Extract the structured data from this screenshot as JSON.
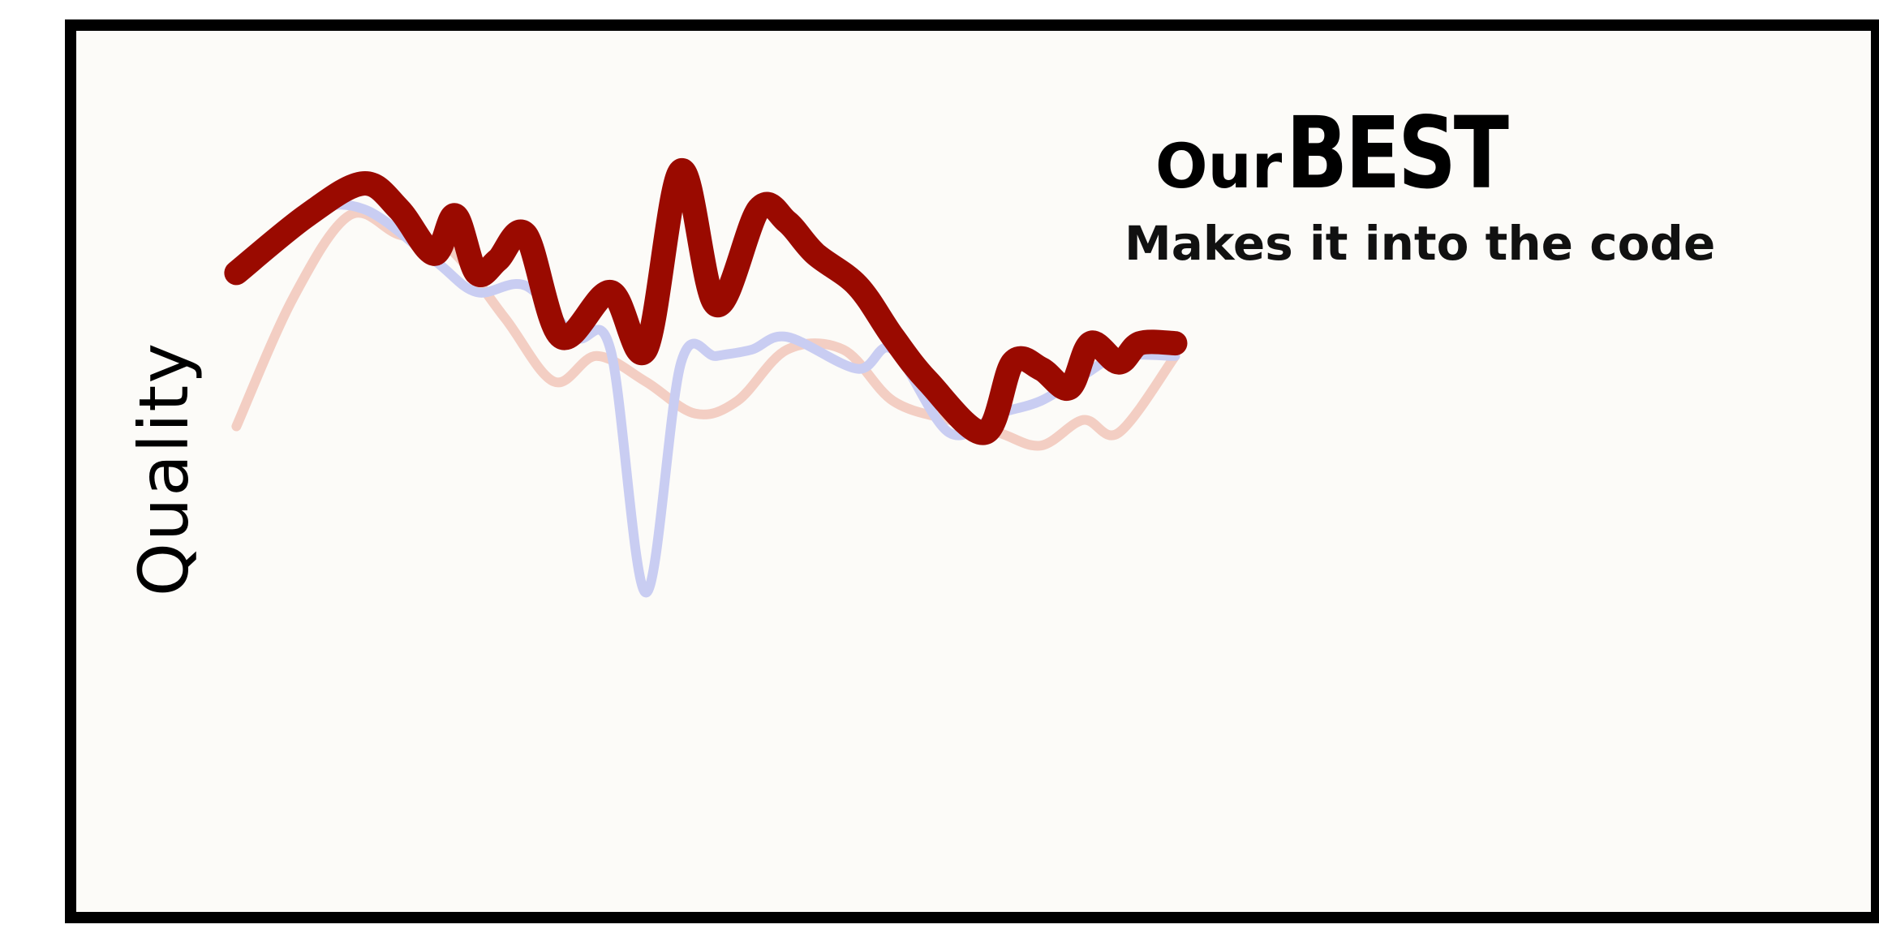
{
  "chart_data": {
    "type": "line",
    "title_prefix": "Our",
    "title_emphasis": "BEST",
    "subtitle": "Makes it into the code",
    "xlabel": "",
    "ylabel": "Quality",
    "ylim": [
      0,
      10
    ],
    "xlim": [
      0,
      22
    ],
    "grid": false,
    "legend": "none",
    "series": [
      {
        "color": "#9a0a00",
        "x": [
          0.2,
          1.2,
          2.0,
          2.5,
          3.0,
          3.3,
          3.6,
          3.9,
          4.3,
          4.8,
          5.5,
          6.0,
          6.5,
          7.0,
          7.6,
          8.0,
          8.4,
          9.0,
          9.5,
          10.0,
          10.8,
          11.2,
          11.6,
          12.0,
          12.3,
          12.7,
          13.0,
          13.5
        ],
        "values": [
          7.0,
          7.9,
          8.4,
          8.0,
          7.3,
          7.9,
          7.0,
          7.2,
          7.6,
          6.0,
          6.7,
          5.8,
          8.6,
          6.5,
          8.0,
          7.8,
          7.3,
          6.8,
          6.0,
          5.3,
          4.5,
          5.6,
          5.5,
          5.2,
          5.9,
          5.6,
          5.9,
          5.9
        ]
      },
      {
        "color": "#c9cdf2",
        "x": [
          0.2,
          1.2,
          2.0,
          3.0,
          3.6,
          4.3,
          5.0,
          5.5,
          6.0,
          6.5,
          7.0,
          7.5,
          8.0,
          9.0,
          9.5,
          10.3,
          11.0,
          11.6,
          12.2,
          12.7,
          13.5
        ],
        "values": [
          6.9,
          7.9,
          8.0,
          7.2,
          6.7,
          6.8,
          6.0,
          5.8,
          2.0,
          5.6,
          5.7,
          5.8,
          6.0,
          5.5,
          5.8,
          4.5,
          4.8,
          5.0,
          5.4,
          5.7,
          5.7
        ]
      },
      {
        "color": "#f3cec3",
        "x": [
          0.2,
          1.0,
          1.8,
          2.5,
          3.2,
          4.0,
          4.7,
          5.3,
          6.0,
          6.7,
          7.3,
          8.0,
          8.8,
          9.5,
          10.3,
          11.0,
          11.6,
          12.2,
          12.7,
          13.5
        ],
        "values": [
          4.6,
          6.6,
          7.9,
          7.6,
          7.4,
          6.3,
          5.3,
          5.7,
          5.3,
          4.8,
          5.0,
          5.8,
          5.8,
          5.0,
          4.7,
          4.5,
          4.3,
          4.7,
          4.5,
          5.7
        ]
      }
    ]
  }
}
